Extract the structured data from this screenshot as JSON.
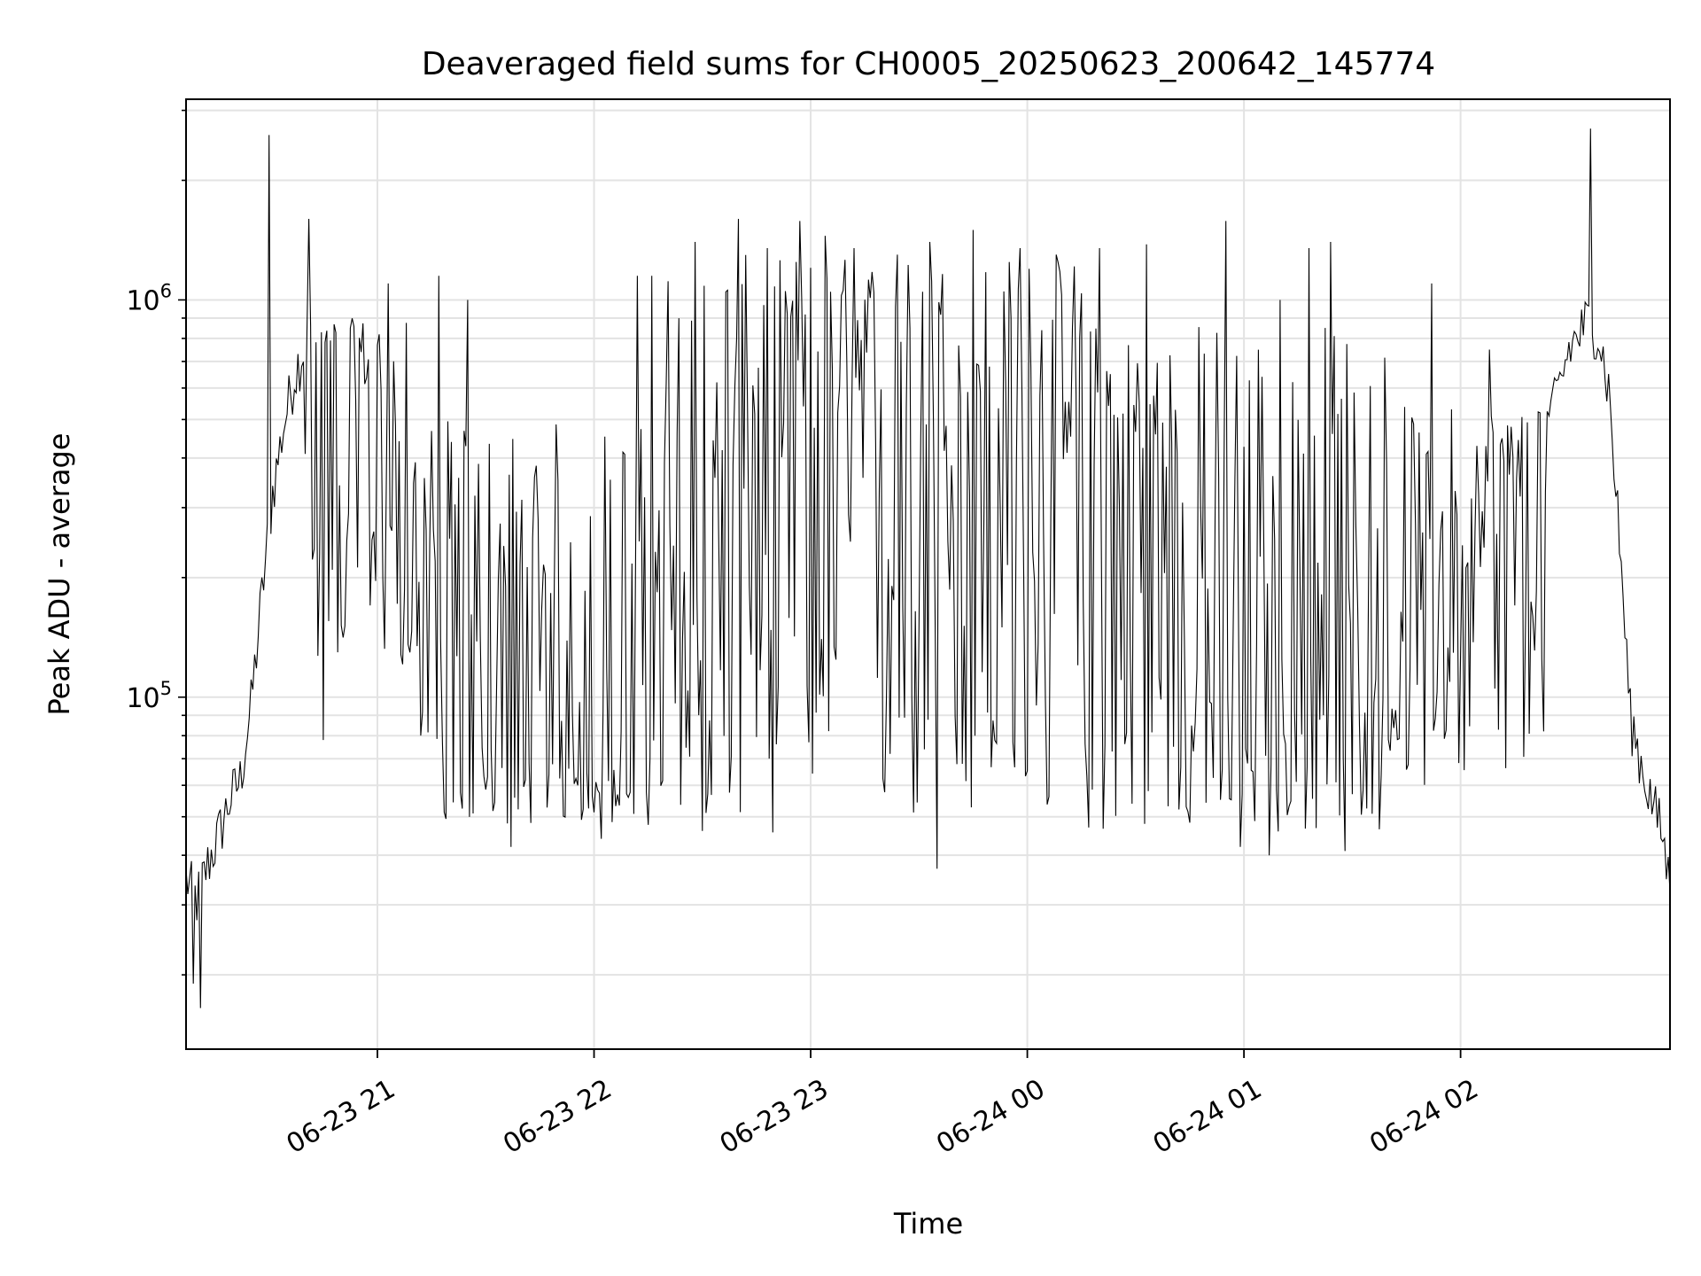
{
  "chart_data": {
    "type": "line",
    "title": "Deaveraged field sums for CH0005_20250623_200642_145774",
    "xlabel": "Time",
    "ylabel": "Peak ADU - average",
    "yscale": "log",
    "ylim": [
      13000,
      3200000
    ],
    "xlim": [
      "2025-06-23 20:07",
      "2025-06-24 02:58"
    ],
    "grid": true,
    "line_color": "#000000",
    "x_ticks": [
      {
        "t": "2025-06-23 21:00",
        "label": "06-23 21"
      },
      {
        "t": "2025-06-23 22:00",
        "label": "06-23 22"
      },
      {
        "t": "2025-06-23 23:00",
        "label": "06-23 23"
      },
      {
        "t": "2025-06-24 00:00",
        "label": "06-24 00"
      },
      {
        "t": "2025-06-24 01:00",
        "label": "06-24 01"
      },
      {
        "t": "2025-06-24 02:00",
        "label": "06-24 02"
      }
    ],
    "y_ticks": [
      {
        "value": 100000,
        "base": "10",
        "exp": "5"
      },
      {
        "value": 1000000,
        "base": "10",
        "exp": "6"
      }
    ],
    "series": [
      {
        "points": [
          [
            "2025-06-23 20:07",
            35000
          ],
          [
            "2025-06-23 20:10",
            31000
          ],
          [
            "2025-06-23 20:13",
            38000
          ],
          [
            "2025-06-23 20:16",
            45000
          ],
          [
            "2025-06-23 20:19",
            55000
          ],
          [
            "2025-06-23 20:22",
            62000
          ],
          [
            "2025-06-23 20:25",
            95000
          ],
          [
            "2025-06-23 20:28",
            180000
          ],
          [
            "2025-06-23 20:31",
            330000
          ],
          [
            "2025-06-23 20:34",
            480000
          ],
          [
            "2025-06-23 20:37",
            650000
          ],
          [
            "2025-06-23 20:40",
            780000
          ],
          [
            "2025-06-23 20:43",
            720000
          ],
          [
            "2025-06-23 20:46",
            680000
          ],
          [
            "2025-06-23 20:49",
            640000
          ],
          [
            "2025-06-23 20:52",
            600000
          ],
          [
            "2025-06-23 20:55",
            580000
          ],
          [
            "2025-06-23 20:58",
            540000
          ],
          [
            "2025-06-23 21:01",
            450000
          ],
          [
            "2025-06-23 21:05",
            300000
          ],
          [
            "2025-06-23 21:10",
            200000
          ],
          [
            "2025-06-23 21:15",
            150000
          ],
          [
            "2025-06-23 21:20",
            110000
          ],
          [
            "2025-06-23 21:25",
            90000
          ],
          [
            "2025-06-23 21:30",
            80000
          ],
          [
            "2025-06-23 21:35",
            72000
          ],
          [
            "2025-06-23 21:40",
            68000
          ],
          [
            "2025-06-23 21:45",
            70000
          ],
          [
            "2025-06-23 21:50",
            72000
          ],
          [
            "2025-06-23 21:55",
            70000
          ],
          [
            "2025-06-23 22:00",
            72000
          ],
          [
            "2025-06-23 22:05",
            70000
          ],
          [
            "2025-06-23 22:10",
            75000
          ],
          [
            "2025-06-23 22:15",
            75000
          ],
          [
            "2025-06-23 22:20",
            90000
          ],
          [
            "2025-06-23 22:25",
            120000
          ],
          [
            "2025-06-23 22:30",
            180000
          ],
          [
            "2025-06-23 22:35",
            250000
          ],
          [
            "2025-06-23 22:40",
            300000
          ],
          [
            "2025-06-23 22:45",
            350000
          ],
          [
            "2025-06-23 22:50",
            380000
          ],
          [
            "2025-06-23 22:55",
            400000
          ],
          [
            "2025-06-23 23:00",
            420000
          ],
          [
            "2025-06-23 23:10",
            430000
          ],
          [
            "2025-06-23 23:20",
            420000
          ],
          [
            "2025-06-23 23:30",
            400000
          ],
          [
            "2025-06-23 23:40",
            380000
          ],
          [
            "2025-06-23 23:50",
            380000
          ],
          [
            "2025-06-24 00:00",
            370000
          ],
          [
            "2025-06-24 00:10",
            350000
          ],
          [
            "2025-06-24 00:20",
            300000
          ],
          [
            "2025-06-24 00:30",
            250000
          ],
          [
            "2025-06-24 00:40",
            200000
          ],
          [
            "2025-06-24 00:50",
            150000
          ],
          [
            "2025-06-24 01:00",
            110000
          ],
          [
            "2025-06-24 01:10",
            90000
          ],
          [
            "2025-06-24 01:20",
            85000
          ],
          [
            "2025-06-24 01:30",
            90000
          ],
          [
            "2025-06-24 01:40",
            110000
          ],
          [
            "2025-06-24 01:50",
            140000
          ],
          [
            "2025-06-24 02:00",
            180000
          ],
          [
            "2025-06-24 02:10",
            250000
          ],
          [
            "2025-06-24 02:20",
            350000
          ],
          [
            "2025-06-24 02:25",
            500000
          ],
          [
            "2025-06-24 02:30",
            750000
          ],
          [
            "2025-06-24 02:35",
            880000
          ],
          [
            "2025-06-24 02:38",
            850000
          ],
          [
            "2025-06-24 02:41",
            600000
          ],
          [
            "2025-06-24 02:44",
            250000
          ],
          [
            "2025-06-24 02:47",
            90000
          ],
          [
            "2025-06-24 02:50",
            68000
          ],
          [
            "2025-06-24 02:53",
            55000
          ],
          [
            "2025-06-24 02:56",
            45000
          ],
          [
            "2025-06-24 02:58",
            33000
          ]
        ],
        "spikes": [
          [
            "2025-06-23 20:30",
            2600000
          ],
          [
            "2025-06-23 20:41",
            1600000
          ],
          [
            "2025-06-23 21:03",
            1100000
          ],
          [
            "2025-06-23 21:17",
            1150000
          ],
          [
            "2025-06-23 21:25",
            1000000
          ],
          [
            "2025-06-23 22:12",
            1150000
          ],
          [
            "2025-06-23 22:16",
            1150000
          ],
          [
            "2025-06-23 22:28",
            1400000
          ],
          [
            "2025-06-23 22:40",
            1600000
          ],
          [
            "2025-06-23 22:48",
            1350000
          ],
          [
            "2025-06-23 22:57",
            1580000
          ],
          [
            "2025-06-23 23:04",
            1450000
          ],
          [
            "2025-06-23 23:12",
            1350000
          ],
          [
            "2025-06-23 23:24",
            1300000
          ],
          [
            "2025-06-23 23:33",
            1400000
          ],
          [
            "2025-06-23 23:45",
            1500000
          ],
          [
            "2025-06-23 23:58",
            1350000
          ],
          [
            "2025-06-24 00:08",
            1300000
          ],
          [
            "2025-06-24 00:20",
            1350000
          ],
          [
            "2025-06-24 00:33",
            1380000
          ],
          [
            "2025-06-24 00:55",
            1580000
          ],
          [
            "2025-06-24 01:10",
            1000000
          ],
          [
            "2025-06-24 01:18",
            1350000
          ],
          [
            "2025-06-24 01:24",
            1400000
          ],
          [
            "2025-06-24 01:52",
            1100000
          ],
          [
            "2025-06-24 02:08",
            750000
          ],
          [
            "2025-06-24 02:36",
            2700000
          ]
        ],
        "dips": [
          [
            "2025-06-23 20:09",
            19000
          ],
          [
            "2025-06-23 20:11",
            16500
          ],
          [
            "2025-06-23 20:45",
            78000
          ],
          [
            "2025-06-23 21:37",
            42000
          ],
          [
            "2025-06-23 22:02",
            44000
          ],
          [
            "2025-06-23 23:35",
            37000
          ],
          [
            "2025-06-24 00:59",
            42000
          ],
          [
            "2025-06-24 01:07",
            40000
          ],
          [
            "2025-06-24 01:28",
            41000
          ],
          [
            "2025-06-24 02:23",
            82000
          ]
        ],
        "noise_zones": [
          {
            "start": "2025-06-23 20:40",
            "end": "2025-06-23 21:10",
            "low": 120000,
            "high": 900000
          },
          {
            "start": "2025-06-23 21:10",
            "end": "2025-06-23 22:15",
            "low": 48000,
            "high": 500000
          },
          {
            "start": "2025-06-23 22:15",
            "end": "2025-06-24 00:20",
            "low": 45000,
            "high": 1300000
          },
          {
            "start": "2025-06-24 00:20",
            "end": "2025-06-24 01:40",
            "low": 45000,
            "high": 900000
          },
          {
            "start": "2025-06-24 01:40",
            "end": "2025-06-24 02:25",
            "low": 60000,
            "high": 550000
          }
        ]
      }
    ]
  }
}
